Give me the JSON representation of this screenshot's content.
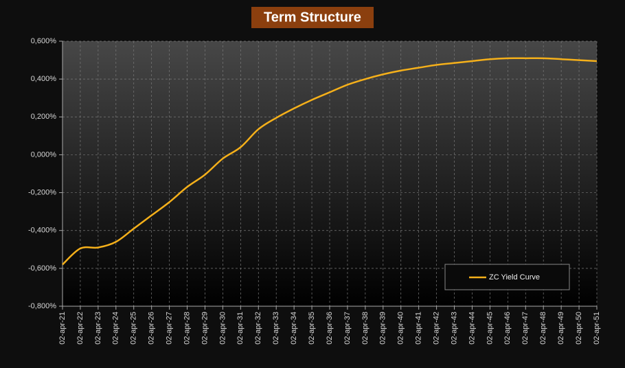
{
  "chart_data": {
    "type": "line",
    "title": "Term Structure",
    "categories": [
      "02-apr-21",
      "02-apr-22",
      "02-apr-23",
      "02-apr-24",
      "02-apr-25",
      "02-apr-26",
      "02-apr-27",
      "02-apr-28",
      "02-apr-29",
      "02-apr-30",
      "02-apr-31",
      "02-apr-32",
      "02-apr-33",
      "02-apr-34",
      "02-apr-35",
      "02-apr-36",
      "02-apr-37",
      "02-apr-38",
      "02-apr-39",
      "02-apr-40",
      "02-apr-41",
      "02-apr-42",
      "02-apr-43",
      "02-apr-44",
      "02-apr-45",
      "02-apr-46",
      "02-apr-47",
      "02-apr-48",
      "02-apr-49",
      "02-apr-50",
      "02-apr-51"
    ],
    "series": [
      {
        "name": "ZC Yield Curve",
        "color": "#f5b01a",
        "values": [
          -0.58,
          -0.495,
          -0.49,
          -0.46,
          -0.39,
          -0.32,
          -0.25,
          -0.17,
          -0.105,
          -0.02,
          0.04,
          0.135,
          0.195,
          0.245,
          0.29,
          0.33,
          0.37,
          0.4,
          0.425,
          0.445,
          0.46,
          0.475,
          0.485,
          0.495,
          0.505,
          0.51,
          0.51,
          0.51,
          0.505,
          0.5,
          0.495
        ]
      }
    ],
    "ylim": [
      -0.8,
      0.6
    ],
    "yticks": [
      {
        "value": -0.8,
        "label": "-0,800%"
      },
      {
        "value": -0.6,
        "label": "-0,600%"
      },
      {
        "value": -0.4,
        "label": "-0,400%"
      },
      {
        "value": -0.2,
        "label": "-0,200%"
      },
      {
        "value": 0,
        "label": "0,000%"
      },
      {
        "value": 0.2,
        "label": "0,200%"
      },
      {
        "value": 0.4,
        "label": "0,400%"
      },
      {
        "value": 0.6,
        "label": "0,600%"
      }
    ],
    "grid": true,
    "legend": "lower right"
  }
}
